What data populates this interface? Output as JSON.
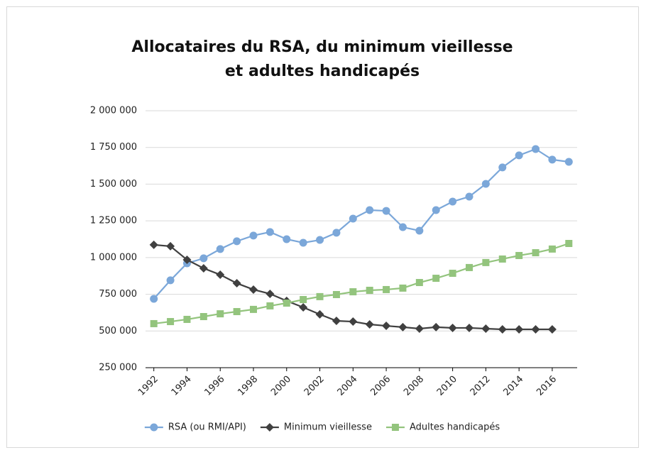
{
  "chart_data": {
    "type": "line",
    "title": [
      "Allocataires du RSA, du minimum vieillesse",
      "et adultes handicapés"
    ],
    "x": [
      1992,
      1993,
      1994,
      1995,
      1996,
      1997,
      1998,
      1999,
      2000,
      2001,
      2002,
      2003,
      2004,
      2005,
      2006,
      2007,
      2008,
      2009,
      2010,
      2011,
      2012,
      2013,
      2014,
      2015,
      2016,
      2017
    ],
    "series": [
      {
        "name": "RSA (ou RMI/API)",
        "color": "#7ba7d9",
        "marker": "circle",
        "values": [
          719000,
          845000,
          961000,
          995000,
          1058000,
          1111000,
          1150000,
          1174000,
          1125000,
          1101000,
          1120000,
          1169000,
          1265000,
          1323000,
          1318000,
          1207000,
          1183000,
          1323000,
          1381000,
          1415000,
          1502000,
          1614000,
          1696000,
          1739000,
          1667000,
          1652000
        ]
      },
      {
        "name": "Minimum vieillesse",
        "color": "#404040",
        "marker": "diamond",
        "values": [
          1087000,
          1077000,
          985000,
          927000,
          883000,
          825000,
          782000,
          753000,
          705000,
          661000,
          613000,
          569000,
          564000,
          545000,
          535000,
          526000,
          516000,
          526000,
          521000,
          521000,
          516000,
          511000,
          511000,
          511000,
          511000,
          null
        ]
      },
      {
        "name": "Adultes handicapés",
        "color": "#93c47d",
        "marker": "square",
        "values": [
          550000,
          564000,
          579000,
          598000,
          617000,
          632000,
          647000,
          671000,
          690000,
          714000,
          734000,
          748000,
          767000,
          777000,
          782000,
          792000,
          830000,
          859000,
          893000,
          932000,
          966000,
          990000,
          1014000,
          1033000,
          1058000,
          1096000
        ]
      }
    ],
    "xlim": [
      1991.5,
      2017.5
    ],
    "xticks": [
      1992,
      1994,
      1996,
      1998,
      2000,
      2002,
      2004,
      2006,
      2008,
      2010,
      2012,
      2014,
      2016
    ],
    "ylim": [
      250000,
      2000000
    ],
    "yticks": [
      {
        "value": 250000,
        "label": "250 000"
      },
      {
        "value": 500000,
        "label": "500 000"
      },
      {
        "value": 750000,
        "label": "750 000"
      },
      {
        "value": 1000000,
        "label": "1 000 000"
      },
      {
        "value": 1250000,
        "label": "1 250 000"
      },
      {
        "value": 1500000,
        "label": "1 500 000"
      },
      {
        "value": 1750000,
        "label": "1 750 000"
      },
      {
        "value": 2000000,
        "label": "2 000 000"
      }
    ],
    "grid": true,
    "legend": "bottom"
  }
}
